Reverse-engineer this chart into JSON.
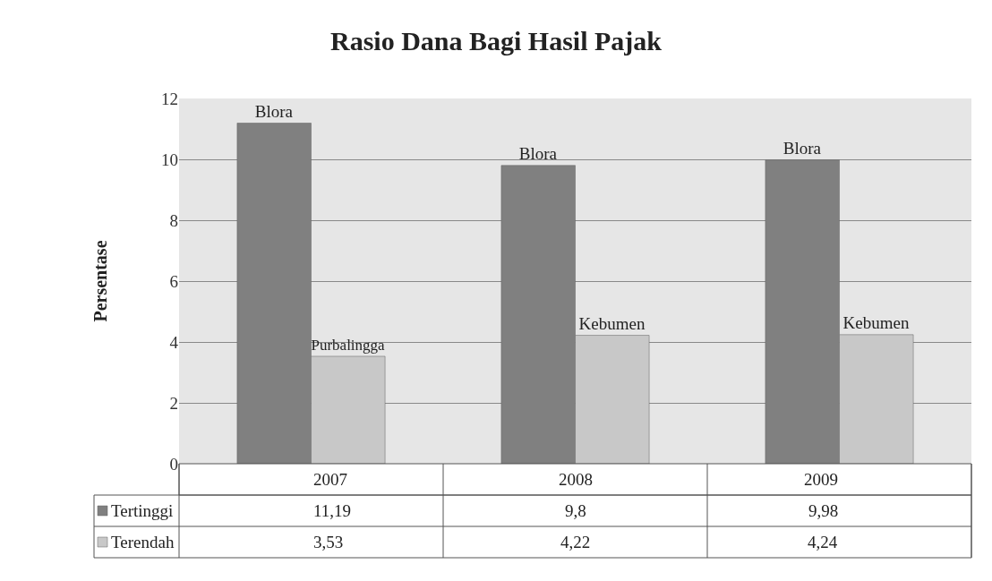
{
  "chart_data": {
    "type": "bar",
    "title": "Rasio Dana Bagi Hasil Pajak",
    "ylabel": "Persentase",
    "categories": [
      "2007",
      "2008",
      "2009"
    ],
    "series": [
      {
        "name": "Tertinggi",
        "color": "#808080",
        "values": [
          11.19,
          9.8,
          9.98
        ],
        "value_labels": [
          "11,19",
          "9,8",
          "9,98"
        ]
      },
      {
        "name": "Terendah",
        "color": "#c8c8c8",
        "values": [
          3.53,
          4.22,
          4.24
        ],
        "value_labels": [
          "3,53",
          "4,22",
          "4,24"
        ]
      }
    ],
    "annotations": [
      "Blora",
      "Purbalingga",
      "Blora",
      "Kebumen",
      "Blora",
      "Kebumen"
    ],
    "ylim": [
      0,
      12
    ],
    "yticks": [
      0,
      2,
      4,
      6,
      8,
      10,
      12
    ],
    "grid": "y",
    "legend": "bottom left"
  }
}
